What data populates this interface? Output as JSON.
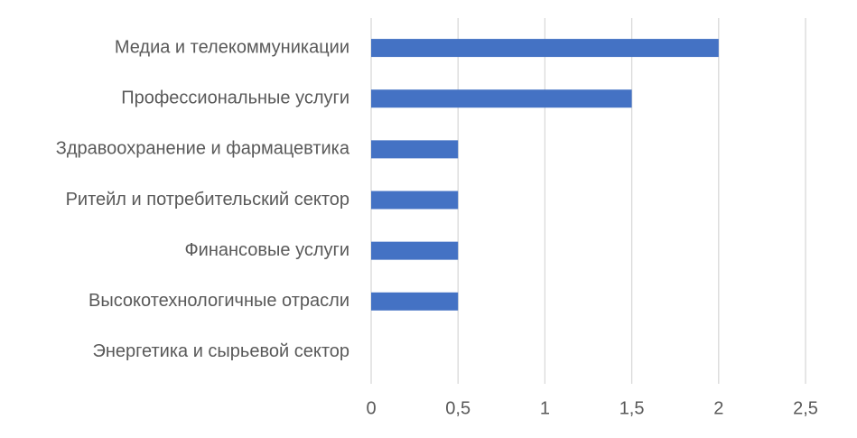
{
  "chart_data": {
    "type": "hbar",
    "categories": [
      "Медиа и телекоммуникации",
      "Профессиональные услуги",
      "Здравоохранение и фармацевтика",
      "Ритейл и потребительский сектор",
      "Финансовые услуги",
      "Высокотехнологичные отрасли",
      "Энергетика и сырьевой сектор"
    ],
    "values": [
      2,
      1.5,
      0.5,
      0.5,
      0.5,
      0.5,
      0
    ],
    "color": "#4472c4",
    "xlim": [
      0,
      2.5
    ],
    "xticks": [
      0,
      {
        "value": 0.5,
        "label": "0,5"
      },
      1,
      {
        "value": 1.5,
        "label": "1,5"
      },
      2,
      {
        "value": 2.5,
        "label": "2,5"
      }
    ],
    "grid": true
  }
}
